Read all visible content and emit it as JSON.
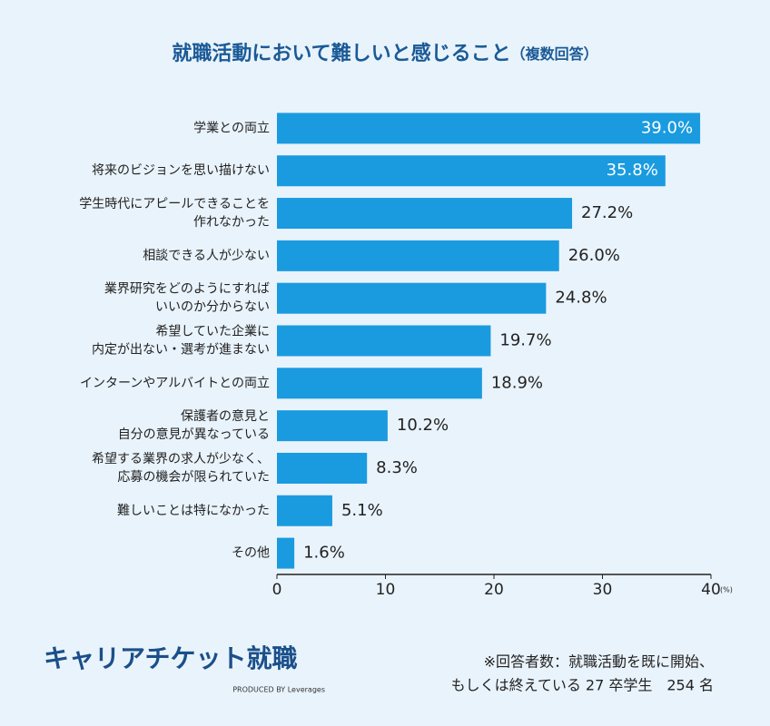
{
  "chart_data": {
    "type": "barh",
    "title": "就職活動において難しいと感じること",
    "subtitle": "（複数回答）",
    "categories": [
      "学業との両立",
      "将来のビジョンを思い描けない",
      "学生時代にアピールできることを\n作れなかった",
      "相談できる人が少ない",
      "業界研究をどのようにすれば\nいいのか分からない",
      "希望していた企業に\n内定が出ない・選考が進まない",
      "インターンやアルバイトとの両立",
      "保護者の意見と\n自分の意見が異なっている",
      "希望する業界の求人が少なく、\n応募の機会が限られていた",
      "難しいことは特になかった",
      "その他"
    ],
    "values": [
      39.0,
      35.8,
      27.2,
      26.0,
      24.8,
      19.7,
      18.9,
      10.2,
      8.3,
      5.1,
      1.6
    ],
    "value_labels": [
      "39.0%",
      "35.8%",
      "27.2%",
      "26.0%",
      "24.8%",
      "19.7%",
      "18.9%",
      "10.2%",
      "8.3%",
      "5.1%",
      "1.6%"
    ],
    "color": "#1a9be0",
    "xlim": [
      0,
      40
    ],
    "xticks": [
      0,
      10,
      20,
      30,
      40
    ],
    "x_unit": "(%)"
  },
  "footer": {
    "logo": "キャリアチケット就職",
    "produced_by": "PRODUCED BY Leverages",
    "note": [
      "※回答者数：就職活動を既に開始、",
      "もしくは終えている 27 卒学生　254 名"
    ]
  }
}
